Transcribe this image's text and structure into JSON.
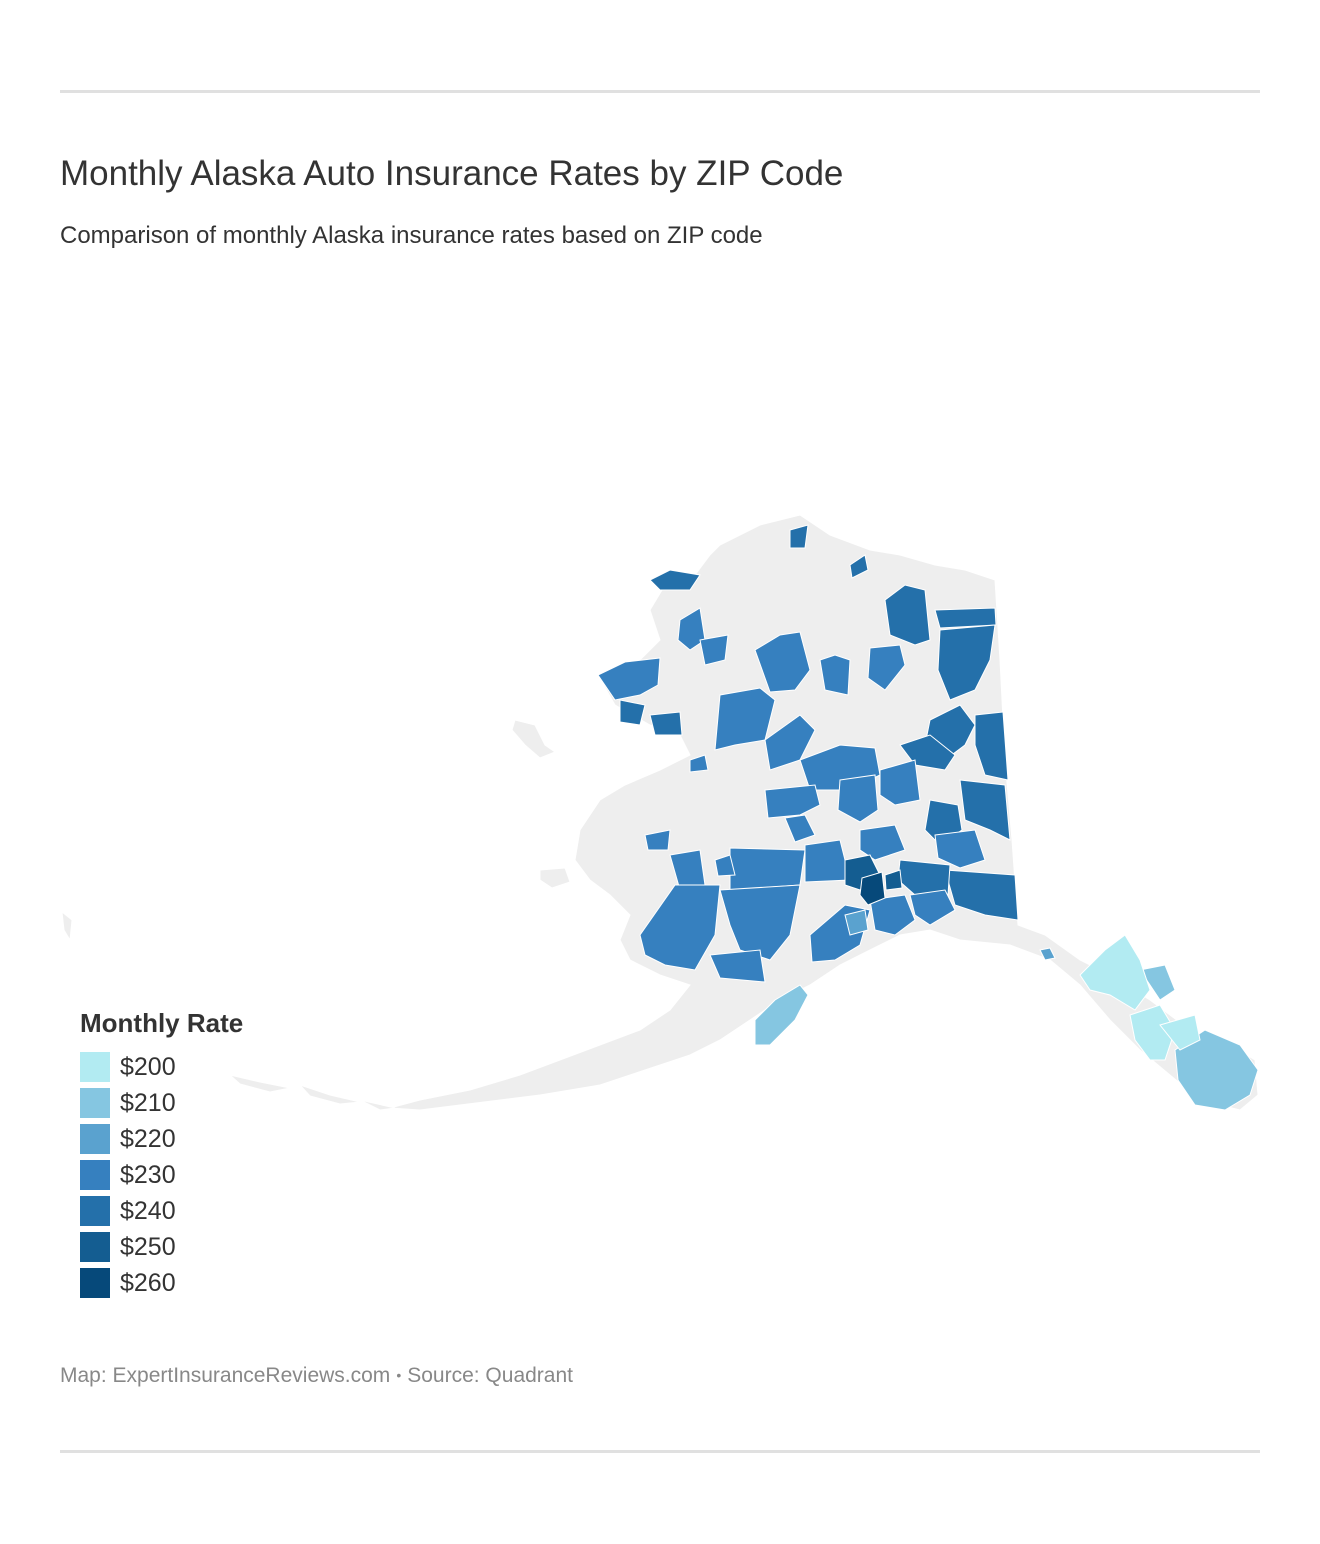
{
  "header": {
    "title": "Monthly Alaska Auto Insurance Rates by ZIP Code",
    "subtitle": "Comparison of monthly Alaska insurance rates based on ZIP code"
  },
  "legend": {
    "title": "Monthly Rate",
    "items": [
      {
        "label": "$200",
        "color": "#b2ebf2"
      },
      {
        "label": "$210",
        "color": "#85c6e1"
      },
      {
        "label": "$220",
        "color": "#5aa2cf"
      },
      {
        "label": "$230",
        "color": "#3680bf"
      },
      {
        "label": "$240",
        "color": "#2470aa"
      },
      {
        "label": "$250",
        "color": "#145d91"
      },
      {
        "label": "$260",
        "color": "#06497a"
      }
    ]
  },
  "map": {
    "region": "Alaska",
    "base_color": "#eeeeee",
    "border_color": "#ffffff"
  },
  "footer": {
    "map_credit": "Map: ExpertInsuranceReviews.com",
    "separator": "•",
    "source": "Source: Quadrant"
  }
}
